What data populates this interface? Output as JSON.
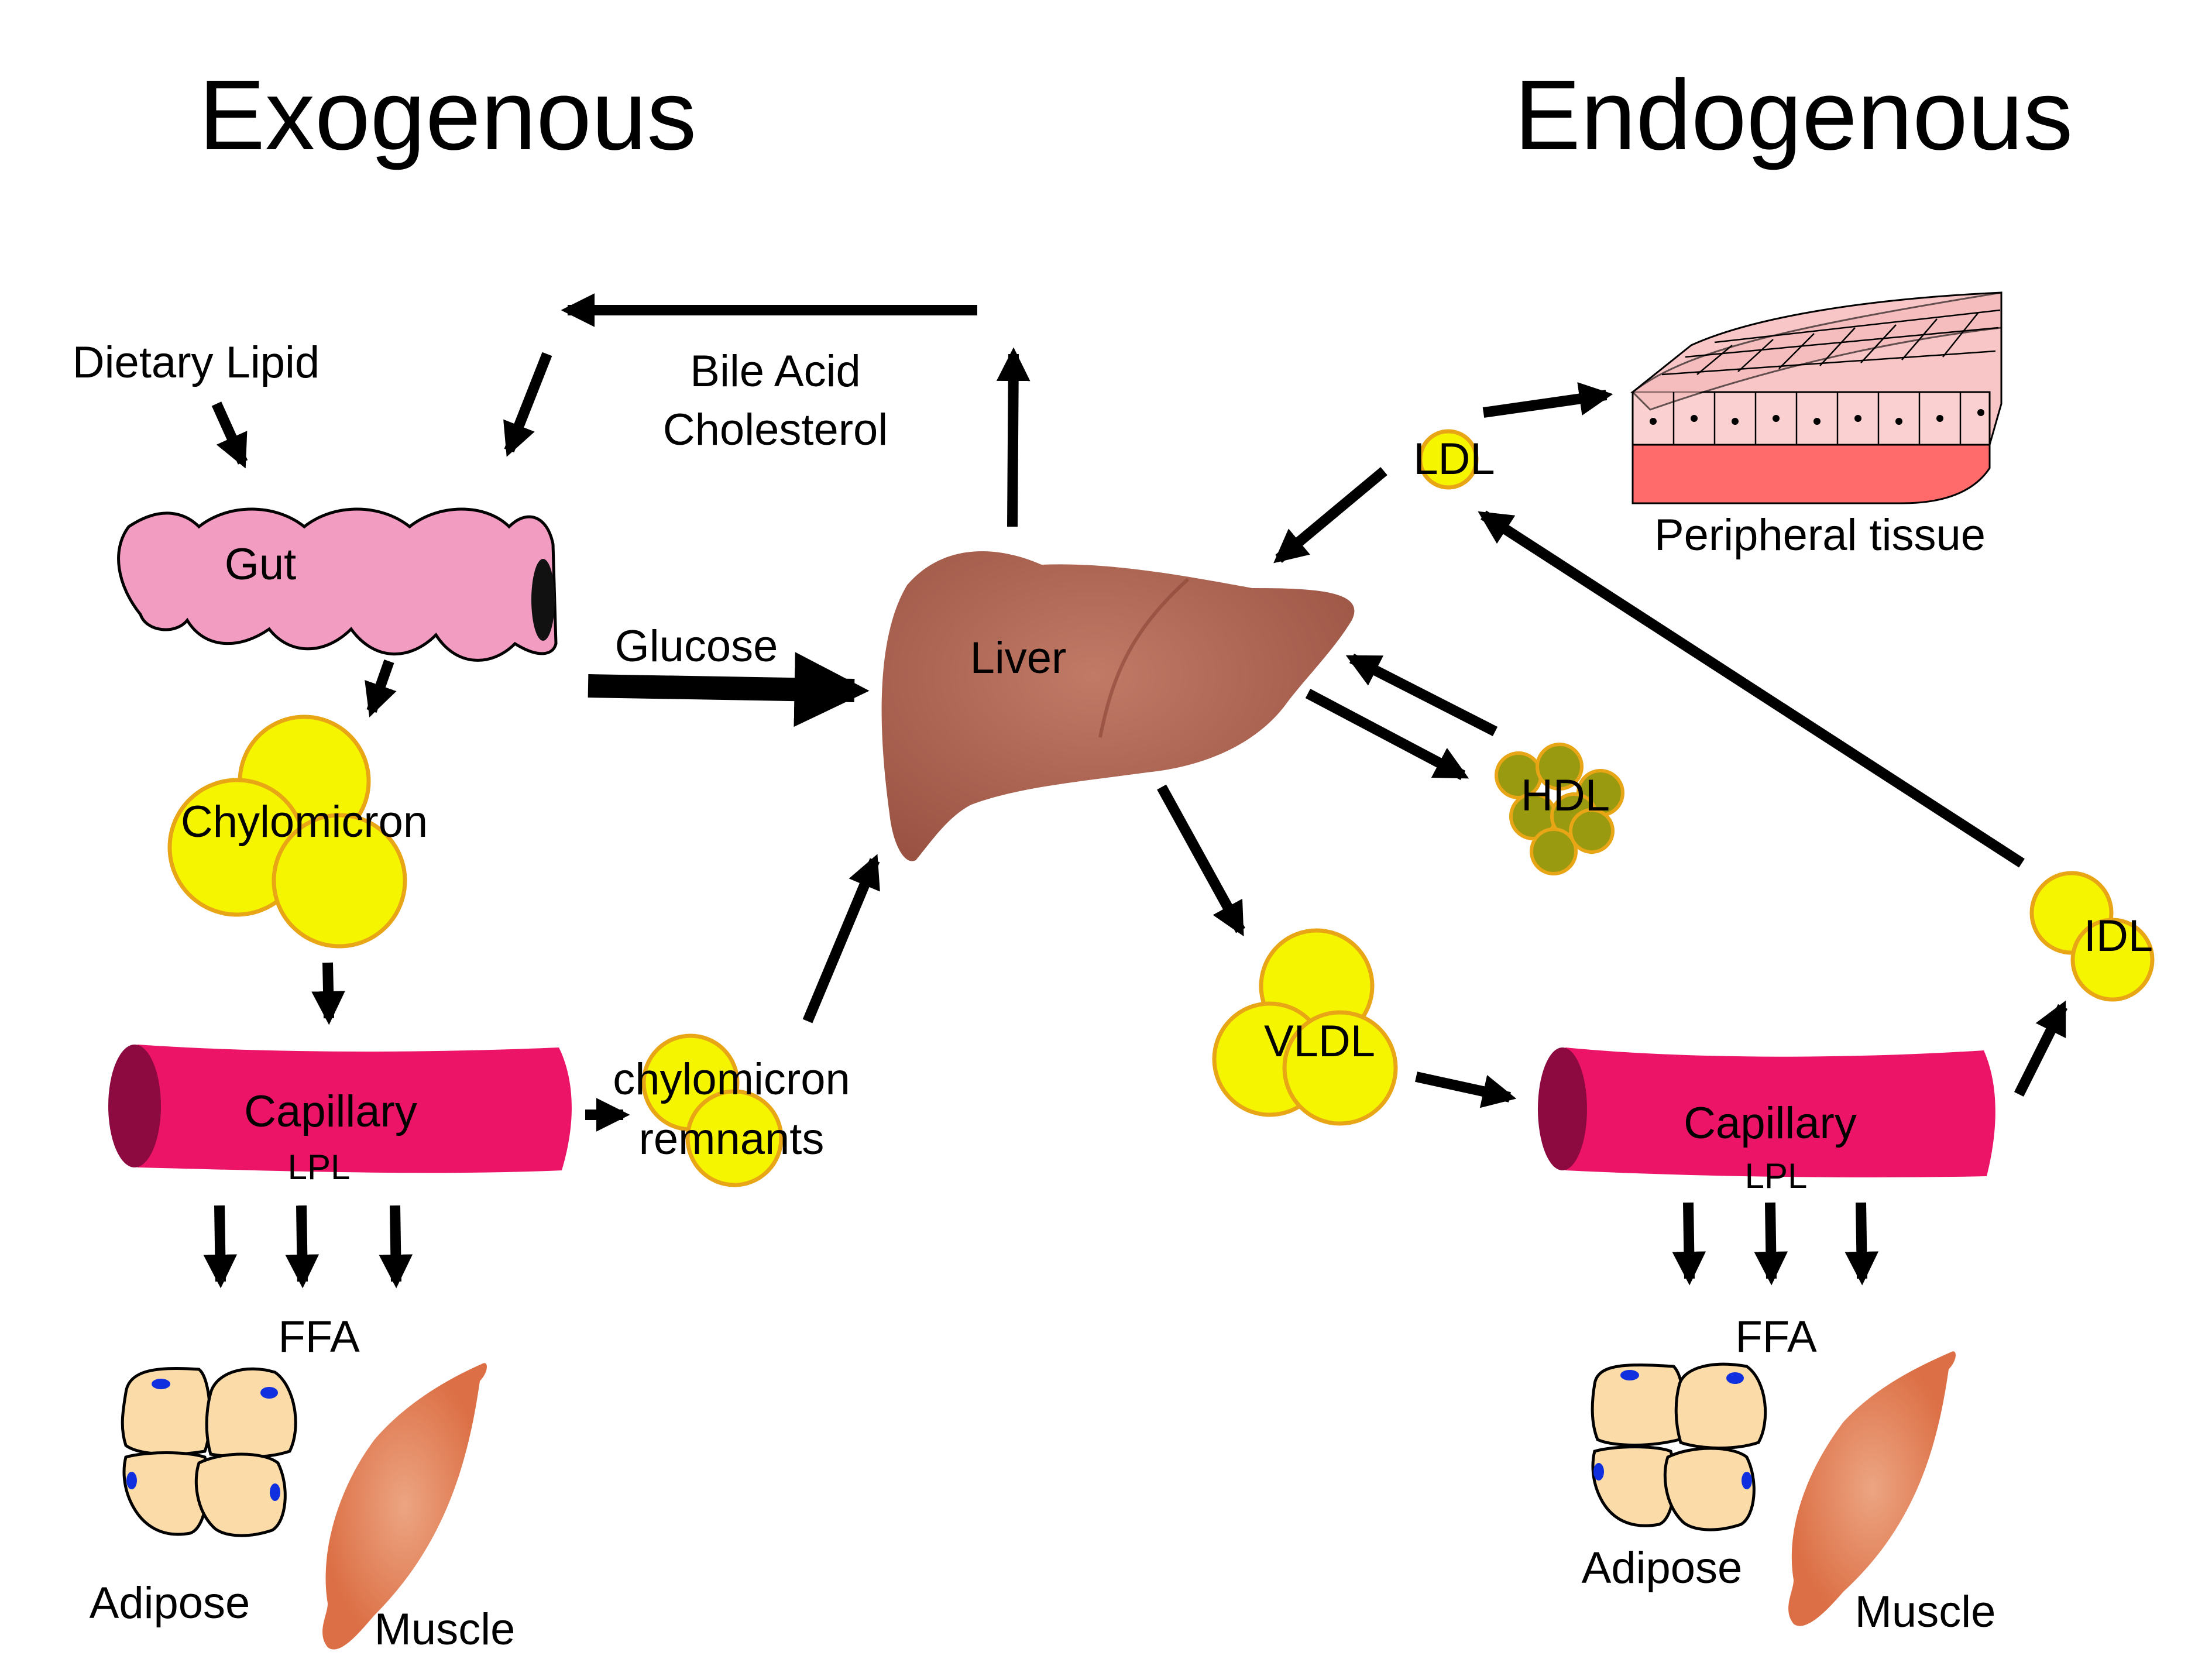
{
  "headings": {
    "exogenous": "Exogenous",
    "endogenous": "Endogenous"
  },
  "labels": {
    "dietary_lipid": "Dietary Lipid",
    "gut": "Gut",
    "bile_acid": "Bile Acid",
    "cholesterol": "Cholesterol",
    "glucose": "Glucose",
    "liver": "Liver",
    "chylomicron": "Chylomicron",
    "capillary_left": "Capillary",
    "lpl_left": "LPL",
    "chylomicron_remnants_1": "chylomicron",
    "chylomicron_remnants_2": "remnants",
    "ffa_left": "FFA",
    "adipose_left": "Adipose",
    "muscle_left": "Muscle",
    "ldl": "LDL",
    "peripheral_tissue": "Peripheral tissue",
    "hdl": "HDL",
    "vldl": "VLDL",
    "idl": "IDL",
    "capillary_right": "Capillary",
    "lpl_right": "LPL",
    "ffa_right": "FFA",
    "adipose_right": "Adipose",
    "muscle_right": "Muscle"
  },
  "colors": {
    "lipoprotein_fill": "#f5f500",
    "lipoprotein_stroke": "#e8a515",
    "hdl_fill": "#9a9a10",
    "gut_fill": "#f29cc2",
    "liver_fill": "#a45a4b",
    "capillary_fill": "#ec1467",
    "capillary_end": "#8c0a3f",
    "adipose_fill": "#fbdba8",
    "nucleus": "#1030e0",
    "muscle_fill": "#e07a52",
    "tissue_top": "#f8c6c6",
    "tissue_side": "#ff6a6a"
  }
}
